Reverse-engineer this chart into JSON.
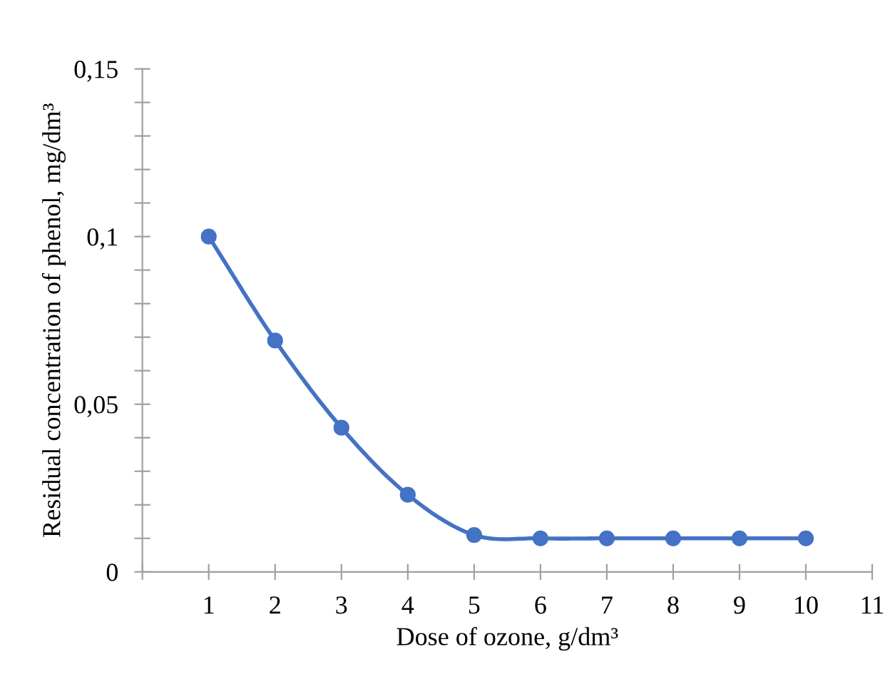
{
  "chart_data": {
    "type": "line",
    "xlabel": "Dose of ozone, g/dm³",
    "ylabel": "Residual concentration of phenol, mg/dm³",
    "x": [
      1,
      2,
      3,
      4,
      5,
      6,
      7,
      8,
      9,
      10
    ],
    "series": [
      {
        "color": "#4472c4",
        "values": [
          0.1,
          0.069,
          0.043,
          0.023,
          0.011,
          0.01,
          0.01,
          0.01,
          0.01,
          0.01
        ]
      }
    ],
    "xlim": [
      0,
      11
    ],
    "xticks": [
      {
        "value": 0,
        "label": null
      },
      1,
      2,
      3,
      4,
      5,
      6,
      7,
      8,
      9,
      10,
      11
    ],
    "ylim": [
      0,
      0.15
    ],
    "yticks": [
      0,
      {
        "value": 0.01,
        "label": null
      },
      {
        "value": 0.02,
        "label": null
      },
      {
        "value": 0.03,
        "label": null
      },
      {
        "value": 0.04,
        "label": null
      },
      {
        "value": 0.05,
        "label": "0,05"
      },
      {
        "value": 0.06,
        "label": null
      },
      {
        "value": 0.07,
        "label": null
      },
      {
        "value": 0.08,
        "label": null
      },
      {
        "value": 0.09,
        "label": null
      },
      {
        "value": 0.1,
        "label": "0,1"
      },
      {
        "value": 0.11,
        "label": null
      },
      {
        "value": 0.12,
        "label": null
      },
      {
        "value": 0.13,
        "label": null
      },
      {
        "value": 0.14,
        "label": null
      },
      {
        "value": 0.15,
        "label": "0,15"
      }
    ],
    "marker": "circle",
    "grid": false,
    "legend": false
  }
}
